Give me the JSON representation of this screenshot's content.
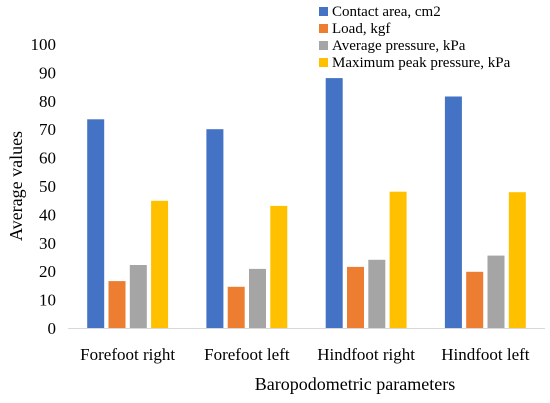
{
  "chart_data": {
    "type": "bar",
    "title": "",
    "xlabel": "Baropodometric parameters",
    "ylabel": "Average values",
    "ylim": [
      0,
      100
    ],
    "yticks": [
      0,
      10,
      20,
      30,
      40,
      50,
      60,
      70,
      80,
      90,
      100
    ],
    "grid": false,
    "legend_position": "top-right",
    "categories": [
      "Forefoot right",
      "Forefoot left",
      "Hindfoot right",
      "Hindfoot left"
    ],
    "series": [
      {
        "name": "Contact area, cm2",
        "color": "#4472c4",
        "values": [
          73.5,
          70,
          88,
          81.5
        ]
      },
      {
        "name": "Load, kgf",
        "color": "#ed7d31",
        "values": [
          16.5,
          14.5,
          21.5,
          19.8
        ]
      },
      {
        "name": "Average pressure, kPa",
        "color": "#a5a5a5",
        "values": [
          22.2,
          20.8,
          24,
          25.5
        ]
      },
      {
        "name": "Maximum peak pressure, kPa",
        "color": "#ffc000",
        "values": [
          44.8,
          43,
          48,
          47.8
        ]
      }
    ]
  }
}
